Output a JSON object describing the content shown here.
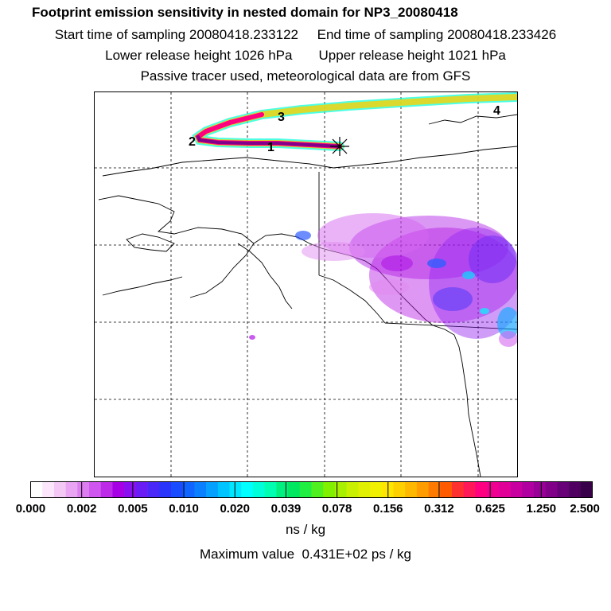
{
  "header": {
    "title": "Footprint emission sensitivity in nested domain for NP3_20080418",
    "sampling_line": "Start time of sampling 20080418.233122     End time of sampling 20080418.233426",
    "height_line": "Lower release height 1026 hPa       Upper release height 1021 hPa",
    "tracer_line": "Passive tracer used, meteorological data are from GFS"
  },
  "map": {
    "trajectory_labels": [
      "1",
      "2",
      "3",
      "4"
    ],
    "grid": true
  },
  "colorbar": {
    "tick_labels": [
      "0.000",
      "0.002",
      "0.005",
      "0.010",
      "0.020",
      "0.039",
      "0.078",
      "0.156",
      "0.312",
      "0.625",
      "1.250",
      "2.500"
    ],
    "colors": [
      "#ffffff",
      "#fbe6fb",
      "#f3c8f5",
      "#e9a4f2",
      "#dd7ef0",
      "#cf56ee",
      "#bd2be8",
      "#a600e4",
      "#8a0ff0",
      "#6a1cf5",
      "#4a28f8",
      "#2a35fb",
      "#1a4cff",
      "#1064ff",
      "#0a80ff",
      "#06a0ff",
      "#00c4ff",
      "#00e6ff",
      "#00ffff",
      "#00ffd8",
      "#00ffb0",
      "#00f080",
      "#00e860",
      "#20ee40",
      "#50f020",
      "#80f000",
      "#a8f000",
      "#c8f000",
      "#e0f000",
      "#f0f000",
      "#ffe600",
      "#ffd000",
      "#ffb800",
      "#ff9c00",
      "#ff7a00",
      "#ff5a00",
      "#ff3030",
      "#ff1858",
      "#ff0080",
      "#f00090",
      "#e00098",
      "#c800a0",
      "#b000a0",
      "#980098",
      "#800088",
      "#680078",
      "#500060",
      "#380048"
    ]
  },
  "units": "ns / kg",
  "max_value": "Maximum value  0.431E+02 ps / kg"
}
